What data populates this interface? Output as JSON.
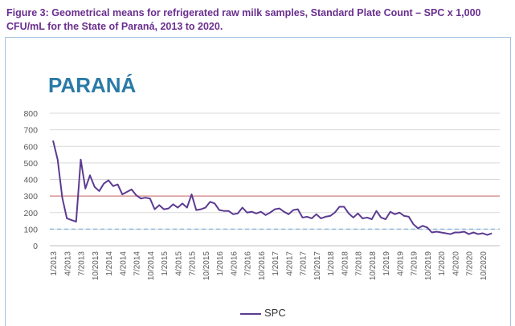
{
  "figure_caption": "Figure 3: Geometrical means for refrigerated raw milk samples, Standard Plate Count – SPC x 1,000 CFU/mL for the State of Paraná, 2013 to 2020.",
  "colors": {
    "caption": "#6a2f8f",
    "title": "#2a7aa8",
    "series": "#5c3b91",
    "limit_red": "#d08282",
    "limit_blue": "#7fb3de",
    "grid": "#d9d9d9",
    "axis_text": "#595959"
  },
  "chart_data": {
    "type": "line",
    "title": "PARANÁ",
    "xlabel": "",
    "ylabel": "",
    "ylim": [
      0,
      800
    ],
    "yticks": [
      0,
      100,
      200,
      300,
      400,
      500,
      600,
      700,
      800
    ],
    "grid": true,
    "legend_position": "bottom",
    "tick_labels": [
      "1/2013",
      "4/2013",
      "7/2013",
      "10/2013",
      "1/2014",
      "4/2014",
      "7/2014",
      "10/2014",
      "1/2015",
      "4/2015",
      "7/2015",
      "10/2015",
      "1/2016",
      "4/2016",
      "7/2016",
      "10/2016",
      "1/2017",
      "4/2017",
      "7/2017",
      "10/2017",
      "1/2018",
      "4/2018",
      "7/2018",
      "10/2018",
      "1/2019",
      "4/2019",
      "7/2019",
      "10/2019",
      "1/2020",
      "4/2020",
      "7/2020",
      "10/2020"
    ],
    "reference_lines": [
      {
        "value": 300,
        "style": "solid",
        "color": "#d08282"
      },
      {
        "value": 100,
        "style": "dashed",
        "color": "#7fb3de"
      }
    ],
    "series": [
      {
        "name": "SPC",
        "color": "#5c3b91",
        "x": [
          "1/2013",
          "2/2013",
          "3/2013",
          "4/2013",
          "5/2013",
          "6/2013",
          "7/2013",
          "8/2013",
          "9/2013",
          "10/2013",
          "11/2013",
          "12/2013",
          "1/2014",
          "2/2014",
          "3/2014",
          "4/2014",
          "5/2014",
          "6/2014",
          "7/2014",
          "8/2014",
          "9/2014",
          "10/2014",
          "11/2014",
          "12/2014",
          "1/2015",
          "2/2015",
          "3/2015",
          "4/2015",
          "5/2015",
          "6/2015",
          "7/2015",
          "8/2015",
          "9/2015",
          "10/2015",
          "11/2015",
          "12/2015",
          "1/2016",
          "2/2016",
          "3/2016",
          "4/2016",
          "5/2016",
          "6/2016",
          "7/2016",
          "8/2016",
          "9/2016",
          "10/2016",
          "11/2016",
          "12/2016",
          "1/2017",
          "2/2017",
          "3/2017",
          "4/2017",
          "5/2017",
          "6/2017",
          "7/2017",
          "8/2017",
          "9/2017",
          "10/2017",
          "11/2017",
          "12/2017",
          "1/2018",
          "2/2018",
          "3/2018",
          "4/2018",
          "5/2018",
          "6/2018",
          "7/2018",
          "8/2018",
          "9/2018",
          "10/2018",
          "11/2018",
          "12/2018",
          "1/2019",
          "2/2019",
          "3/2019",
          "4/2019",
          "5/2019",
          "6/2019",
          "7/2019",
          "8/2019",
          "9/2019",
          "10/2019",
          "11/2019",
          "12/2019",
          "1/2020",
          "2/2020",
          "3/2020",
          "4/2020",
          "5/2020",
          "6/2020",
          "7/2020",
          "8/2020",
          "9/2020",
          "10/2020",
          "11/2020",
          "12/2020"
        ],
        "values": [
          635,
          520,
          290,
          165,
          155,
          145,
          520,
          345,
          425,
          355,
          330,
          375,
          395,
          360,
          370,
          310,
          325,
          340,
          305,
          285,
          290,
          285,
          220,
          245,
          220,
          225,
          250,
          230,
          255,
          230,
          310,
          215,
          220,
          230,
          265,
          255,
          215,
          210,
          210,
          190,
          195,
          230,
          200,
          205,
          195,
          205,
          185,
          200,
          220,
          225,
          205,
          190,
          215,
          220,
          170,
          175,
          165,
          190,
          165,
          175,
          180,
          200,
          235,
          235,
          195,
          170,
          195,
          165,
          170,
          160,
          210,
          170,
          160,
          205,
          190,
          200,
          180,
          175,
          130,
          105,
          120,
          110,
          80,
          85,
          80,
          75,
          70,
          80,
          80,
          85,
          70,
          80,
          70,
          75,
          65,
          75
        ]
      }
    ]
  }
}
